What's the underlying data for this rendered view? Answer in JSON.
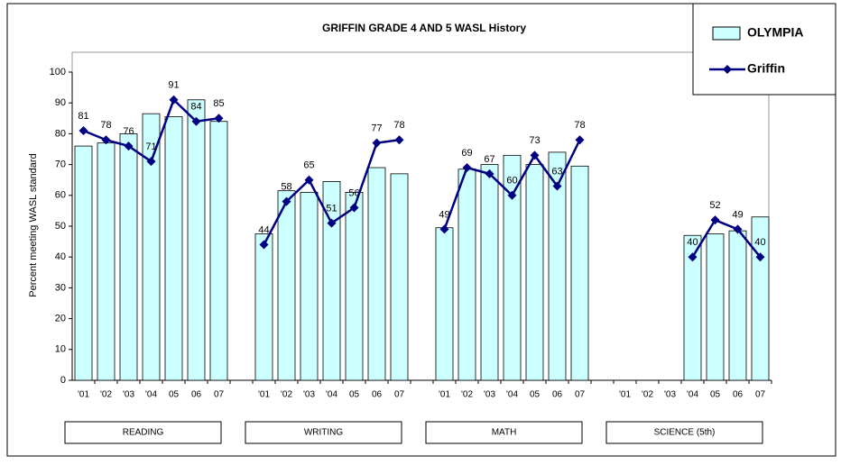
{
  "chart_data": {
    "type": "bar-line",
    "title": "GRIFFIN GRADE 4 AND 5 WASL History",
    "y_label": "Percent meeting WASL standard",
    "categories": [
      "'01",
      "'02",
      "'03",
      "'04",
      "05",
      "06",
      "07",
      null,
      "'01",
      "'02",
      "'03",
      "'04",
      "05",
      "06",
      "07",
      null,
      "'01",
      "'02",
      "'03",
      "'04",
      "05",
      "06",
      "07",
      null,
      "'01",
      "'02",
      "'03",
      "'04",
      "05",
      "06",
      "07"
    ],
    "groups": [
      "READING",
      "WRITING",
      "MATH",
      "SCIENCE (5th)"
    ],
    "series": [
      {
        "name": "OLYMPIA",
        "type": "bar",
        "color": "#ccffff",
        "values": [
          76,
          77,
          80,
          86.5,
          85.5,
          91,
          84,
          null,
          47.5,
          61.5,
          61,
          64.5,
          61,
          69,
          67,
          null,
          49.5,
          68.5,
          70,
          73,
          70,
          74,
          69.5,
          null,
          null,
          null,
          null,
          47,
          47.5,
          48.5,
          53
        ]
      },
      {
        "name": "Griffin",
        "type": "line",
        "color": "#000080",
        "values": [
          81,
          78,
          76,
          71,
          91,
          84,
          85,
          null,
          44,
          58,
          65,
          51,
          56,
          77,
          78,
          null,
          49,
          69,
          67,
          60,
          73,
          63,
          78,
          null,
          null,
          null,
          null,
          40,
          52,
          49,
          40
        ]
      }
    ],
    "ylim": [
      0,
      100
    ],
    "yticks": [
      0,
      10,
      20,
      30,
      40,
      50,
      60,
      70,
      80,
      90,
      100
    ],
    "legend": "top-right"
  }
}
